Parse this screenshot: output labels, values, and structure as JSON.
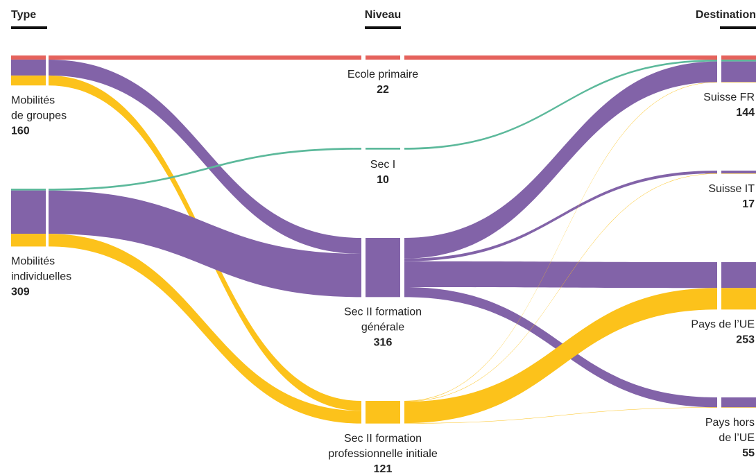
{
  "chart_data": {
    "type": "sankey",
    "columns": [
      {
        "title": "Type",
        "nodes": [
          {
            "label": [
              "Mobilités",
              "de groupes"
            ],
            "value": 160
          },
          {
            "label": [
              "Mobilités",
              "individuelles"
            ],
            "value": 309
          }
        ]
      },
      {
        "title": "Niveau",
        "nodes": [
          {
            "label": [
              "Ecole primaire"
            ],
            "value": 22,
            "color": "#e5625c"
          },
          {
            "label": [
              "Sec I"
            ],
            "value": 10,
            "color": "#5cb99b"
          },
          {
            "label": [
              "Sec II formation",
              "générale"
            ],
            "value": 316,
            "color": "#8263a8"
          },
          {
            "label": [
              "Sec II formation",
              "professionnelle initiale"
            ],
            "value": 121,
            "color": "#fcc21b"
          }
        ]
      },
      {
        "title": "Destination",
        "nodes": [
          {
            "label": [
              "Suisse FR"
            ],
            "value": 144
          },
          {
            "label": [
              "Suisse IT"
            ],
            "value": 17
          },
          {
            "label": [
              "Pays de l’UE"
            ],
            "value": 253
          },
          {
            "label": [
              "Pays hors",
              "de l’UE"
            ],
            "value": 55
          }
        ]
      }
    ],
    "links": [
      {
        "source": [
          0,
          0
        ],
        "target": [
          1,
          0
        ],
        "value": 22
      },
      {
        "source": [
          0,
          0
        ],
        "target": [
          1,
          2
        ],
        "value": 85
      },
      {
        "source": [
          0,
          0
        ],
        "target": [
          1,
          3
        ],
        "value": 53
      },
      {
        "source": [
          0,
          1
        ],
        "target": [
          1,
          1
        ],
        "value": 10
      },
      {
        "source": [
          0,
          1
        ],
        "target": [
          1,
          2
        ],
        "value": 231
      },
      {
        "source": [
          0,
          1
        ],
        "target": [
          1,
          3
        ],
        "value": 68
      },
      {
        "source": [
          1,
          0
        ],
        "target": [
          2,
          0
        ],
        "value": 22
      },
      {
        "source": [
          1,
          1
        ],
        "target": [
          2,
          0
        ],
        "value": 10
      },
      {
        "source": [
          1,
          2
        ],
        "target": [
          2,
          0
        ],
        "value": 110
      },
      {
        "source": [
          1,
          2
        ],
        "target": [
          2,
          1
        ],
        "value": 15
      },
      {
        "source": [
          1,
          2
        ],
        "target": [
          2,
          2
        ],
        "value": 138
      },
      {
        "source": [
          1,
          2
        ],
        "target": [
          2,
          3
        ],
        "value": 53
      },
      {
        "source": [
          1,
          3
        ],
        "target": [
          2,
          0
        ],
        "value": 2
      },
      {
        "source": [
          1,
          3
        ],
        "target": [
          2,
          1
        ],
        "value": 2
      },
      {
        "source": [
          1,
          3
        ],
        "target": [
          2,
          2
        ],
        "value": 115
      },
      {
        "source": [
          1,
          3
        ],
        "target": [
          2,
          3
        ],
        "value": 2
      }
    ]
  }
}
